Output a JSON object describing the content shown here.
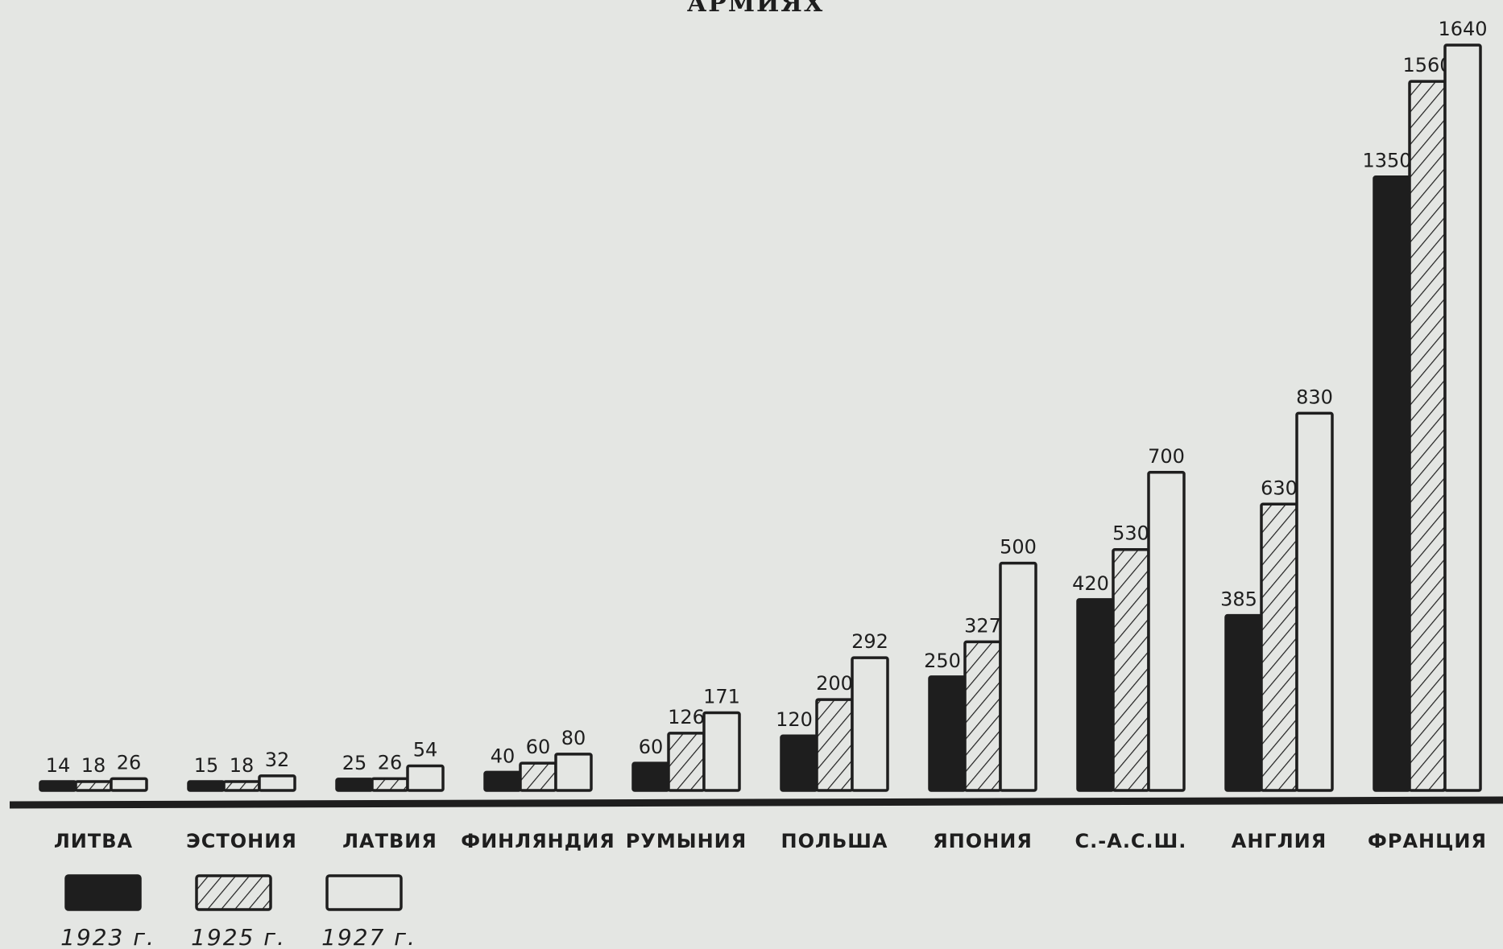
{
  "chart_data": {
    "type": "bar",
    "title": "АРМИЯХ",
    "categories": [
      "ЛИТВА",
      "ЭСТОНИЯ",
      "ЛАТВИЯ",
      "ФИНЛЯНДИЯ",
      "РУМЫНИЯ",
      "ПОЛЬША",
      "ЯПОНИЯ",
      "С.-А.С.Ш.",
      "АНГЛИЯ",
      "ФРАНЦИЯ"
    ],
    "series": [
      {
        "name": "1923 г.",
        "fill": "solid",
        "values": [
          14,
          15,
          25,
          40,
          60,
          120,
          250,
          420,
          385,
          1350
        ]
      },
      {
        "name": "1925 г.",
        "fill": "hatched",
        "values": [
          18,
          18,
          26,
          60,
          126,
          200,
          327,
          530,
          630,
          1560
        ]
      },
      {
        "name": "1927 г.",
        "fill": "hollow",
        "values": [
          26,
          32,
          54,
          80,
          171,
          292,
          500,
          700,
          830,
          1640
        ]
      }
    ],
    "xlabel": "",
    "ylabel": "",
    "ylim": [
      0,
      1640
    ],
    "grid": false,
    "legend": "bottom-left",
    "colors": {
      "ink": "#1e1e1e",
      "paper": "#e4e6e3"
    }
  }
}
